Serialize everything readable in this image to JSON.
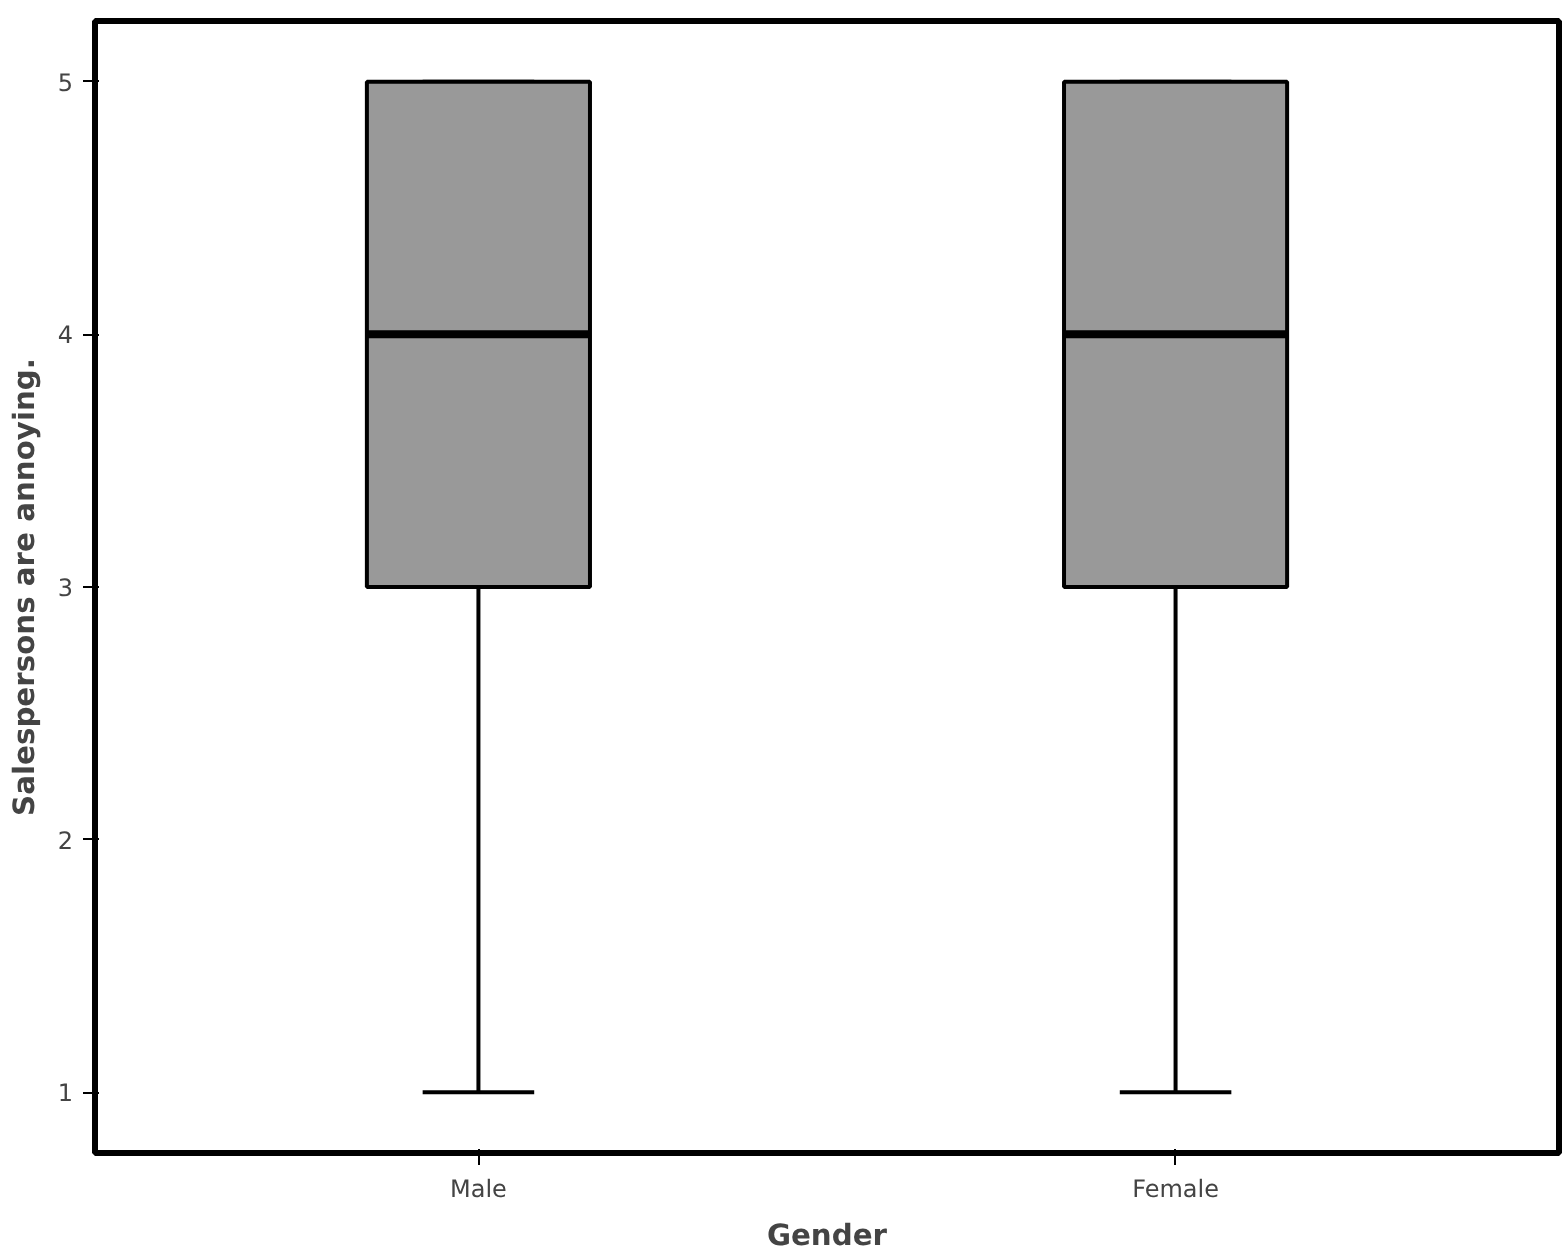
{
  "chart_data": {
    "type": "box",
    "categories": [
      "Male",
      "Female"
    ],
    "xlabel": "Gender",
    "ylabel": "Salespersons are annoying.",
    "color": "#999999",
    "boxes": [
      {
        "low": 1,
        "q1": 3,
        "median": 4,
        "q3": 5,
        "high": 5
      },
      {
        "low": 1,
        "q1": 3,
        "median": 4,
        "q3": 5,
        "high": 5
      }
    ],
    "ylim": [
      0.76,
      5.24
    ],
    "yticks": [
      1,
      2,
      3,
      4,
      5
    ],
    "grid": false
  }
}
